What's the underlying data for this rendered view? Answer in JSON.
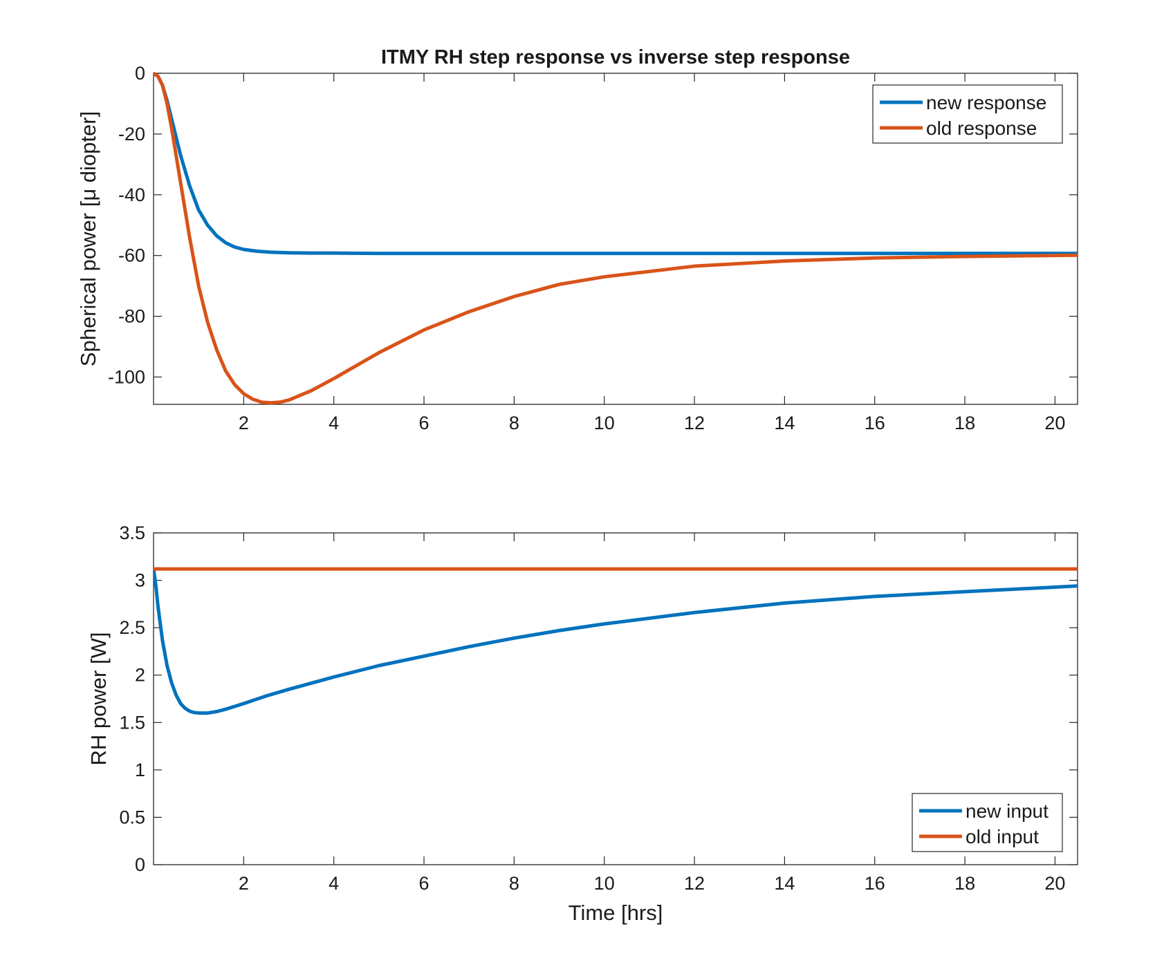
{
  "figure": {
    "title": "ITMY RH step response vs inverse step response"
  },
  "chart_data": [
    {
      "type": "line",
      "title": "ITMY RH step response vs inverse step response",
      "xlabel": "",
      "ylabel": "Spherical power [μ diopter]",
      "xlim": [
        0,
        20.5
      ],
      "ylim": [
        -109,
        0
      ],
      "xticks": [
        2,
        4,
        6,
        8,
        10,
        12,
        14,
        16,
        18,
        20
      ],
      "yticks": [
        0,
        -20,
        -40,
        -60,
        -80,
        -100
      ],
      "grid": false,
      "legend_position": "top-right",
      "series": [
        {
          "name": "new response",
          "color": "#0072BD",
          "x": [
            0,
            0.1,
            0.2,
            0.3,
            0.4,
            0.5,
            0.6,
            0.8,
            1.0,
            1.2,
            1.4,
            1.6,
            1.8,
            2.0,
            2.3,
            2.6,
            3.0,
            3.5,
            4.0,
            5.0,
            6.0,
            8.0,
            10.0,
            12.0,
            14.0,
            16.0,
            18.0,
            20.5
          ],
          "y": [
            0,
            -1,
            -4,
            -9,
            -15,
            -21,
            -27,
            -37,
            -45,
            -50,
            -53.5,
            -55.8,
            -57.2,
            -58,
            -58.6,
            -58.9,
            -59.1,
            -59.2,
            -59.2,
            -59.3,
            -59.3,
            -59.3,
            -59.3,
            -59.3,
            -59.3,
            -59.3,
            -59.3,
            -59.3
          ]
        },
        {
          "name": "old response",
          "color": "#D95319",
          "x": [
            0,
            0.1,
            0.2,
            0.3,
            0.4,
            0.6,
            0.8,
            1.0,
            1.2,
            1.4,
            1.6,
            1.8,
            2.0,
            2.2,
            2.4,
            2.6,
            2.8,
            3.0,
            3.5,
            4.0,
            5.0,
            6.0,
            7.0,
            8.0,
            9.0,
            10.0,
            12.0,
            14.0,
            16.0,
            18.0,
            20.5
          ],
          "y": [
            0,
            -1,
            -4,
            -10,
            -18,
            -36,
            -54,
            -70,
            -82,
            -91,
            -98,
            -102.5,
            -105.5,
            -107.3,
            -108.3,
            -108.5,
            -108.3,
            -107.6,
            -104.5,
            -100.5,
            -92,
            -84.5,
            -78.5,
            -73.5,
            -69.5,
            -67,
            -63.5,
            -61.8,
            -60.8,
            -60.3,
            -59.9
          ]
        }
      ]
    },
    {
      "type": "line",
      "title": "",
      "xlabel": "Time [hrs]",
      "ylabel": "RH power [W]",
      "xlim": [
        0,
        20.5
      ],
      "ylim": [
        0,
        3.5
      ],
      "xticks": [
        2,
        4,
        6,
        8,
        10,
        12,
        14,
        16,
        18,
        20
      ],
      "yticks": [
        0,
        0.5,
        1,
        1.5,
        2,
        2.5,
        3,
        3.5
      ],
      "grid": false,
      "legend_position": "bottom-right",
      "series": [
        {
          "name": "new input",
          "color": "#0072BD",
          "x": [
            0,
            0.05,
            0.1,
            0.2,
            0.3,
            0.4,
            0.5,
            0.6,
            0.7,
            0.8,
            0.9,
            1.0,
            1.1,
            1.2,
            1.4,
            1.6,
            1.8,
            2.0,
            2.5,
            3.0,
            4.0,
            5.0,
            6.0,
            7.0,
            8.0,
            9.0,
            10.0,
            12.0,
            14.0,
            16.0,
            18.0,
            20.5
          ],
          "y": [
            3.12,
            2.95,
            2.72,
            2.36,
            2.1,
            1.92,
            1.79,
            1.7,
            1.65,
            1.62,
            1.605,
            1.6,
            1.6,
            1.6,
            1.615,
            1.64,
            1.67,
            1.7,
            1.78,
            1.85,
            1.98,
            2.1,
            2.2,
            2.3,
            2.39,
            2.47,
            2.54,
            2.66,
            2.76,
            2.83,
            2.88,
            2.94
          ]
        },
        {
          "name": "old input",
          "color": "#D95319",
          "x": [
            0,
            20.5
          ],
          "y": [
            3.12,
            3.12
          ]
        }
      ]
    }
  ]
}
